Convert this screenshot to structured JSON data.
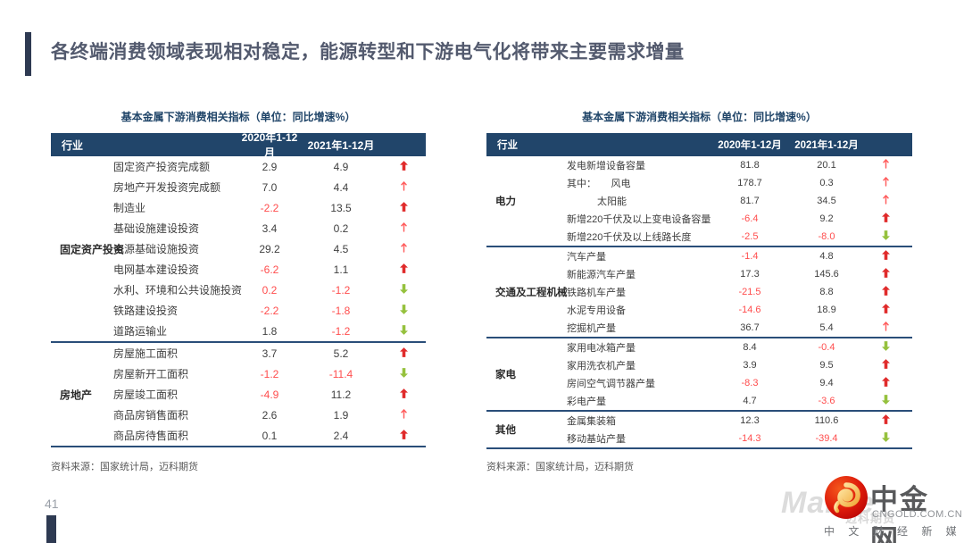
{
  "slide": {
    "title": "各终端消费领域表现相对稳定，能源转型和下游电气化将带来主要需求增量",
    "page_number": "41",
    "source_left": "资料来源：国家统计局，迈科期货",
    "source_right": "资料来源：国家统计局，迈科期货"
  },
  "colors": {
    "header_navy": "#21456A",
    "separator_navy": "#2A4E79",
    "value_red": "#FF4D4D",
    "value_dark": "#404040",
    "arrow_up_bold": "#E02B2B",
    "arrow_up_thin": "#FF5C5C",
    "arrow_down_green": "#95C13D"
  },
  "logo": {
    "name": "中金网",
    "domain": "CNGOLD.COM.CN",
    "tagline": "中 文 财 经 新 媒 体",
    "watermark": "MaiKe",
    "watermark2": "迈科期货",
    "mark_icon": "red-gold-cloud-circle"
  },
  "tables": [
    {
      "title": "基本金属下游消费相关指标（单位：同比增速%）",
      "headers": {
        "industry": "行业",
        "p2020": "2020年1-12月",
        "p2021": "2021年1-12月"
      },
      "groups": [
        {
          "name": "固定资产投资",
          "rows": [
            {
              "label": "固定资产投资完成额",
              "indent": 0,
              "v2020": "2.9",
              "c2020": "k",
              "v2021": "4.9",
              "c2021": "k",
              "arrow": "up-bold"
            },
            {
              "label": "房地产开发投资完成额",
              "indent": 0,
              "v2020": "7.0",
              "c2020": "k",
              "v2021": "4.4",
              "c2021": "k",
              "arrow": "up-thin"
            },
            {
              "label": "制造业",
              "indent": 0,
              "v2020": "-2.2",
              "c2020": "r",
              "v2021": "13.5",
              "c2021": "k",
              "arrow": "up-bold"
            },
            {
              "label": "基础设施建设投资",
              "indent": 0,
              "v2020": "3.4",
              "c2020": "k",
              "v2021": "0.2",
              "c2021": "k",
              "arrow": "up-thin"
            },
            {
              "label": "电源基础设施投资",
              "indent": 0,
              "v2020": "29.2",
              "c2020": "k",
              "v2021": "4.5",
              "c2021": "k",
              "arrow": "up-thin"
            },
            {
              "label": "电网基本建设投资",
              "indent": 0,
              "v2020": "-6.2",
              "c2020": "r",
              "v2021": "1.1",
              "c2021": "k",
              "arrow": "up-bold"
            },
            {
              "label": "水利、环境和公共设施投资",
              "indent": 0,
              "v2020": "0.2",
              "c2020": "r",
              "v2021": "-1.2",
              "c2021": "r",
              "arrow": "down-bold"
            },
            {
              "label": "铁路建设投资",
              "indent": 0,
              "v2020": "-2.2",
              "c2020": "r",
              "v2021": "-1.8",
              "c2021": "r",
              "arrow": "down-bold"
            },
            {
              "label": "道路运输业",
              "indent": 0,
              "v2020": "1.8",
              "c2020": "k",
              "v2021": "-1.2",
              "c2021": "r",
              "arrow": "down-bold"
            }
          ]
        },
        {
          "name": "房地产",
          "rows": [
            {
              "label": "房屋施工面积",
              "indent": 0,
              "v2020": "3.7",
              "c2020": "k",
              "v2021": "5.2",
              "c2021": "k",
              "arrow": "up-bold"
            },
            {
              "label": "房屋新开工面积",
              "indent": 0,
              "v2020": "-1.2",
              "c2020": "r",
              "v2021": "-11.4",
              "c2021": "r",
              "arrow": "down-bold"
            },
            {
              "label": "房屋竣工面积",
              "indent": 0,
              "v2020": "-4.9",
              "c2020": "r",
              "v2021": "11.2",
              "c2021": "k",
              "arrow": "up-bold"
            },
            {
              "label": "商品房销售面积",
              "indent": 0,
              "v2020": "2.6",
              "c2020": "k",
              "v2021": "1.9",
              "c2021": "k",
              "arrow": "up-thin"
            },
            {
              "label": "商品房待售面积",
              "indent": 0,
              "v2020": "0.1",
              "c2020": "k",
              "v2021": "2.4",
              "c2021": "k",
              "arrow": "up-bold"
            }
          ]
        }
      ]
    },
    {
      "title": "基本金属下游消费相关指标（单位：同比增速%）",
      "headers": {
        "industry": "行业",
        "p2020": "2020年1-12月",
        "p2021": "2021年1-12月"
      },
      "groups": [
        {
          "name": "电力",
          "rows": [
            {
              "label": "发电新增设备容量",
              "indent": 0,
              "v2020": "81.8",
              "c2020": "k",
              "v2021": "20.1",
              "c2021": "k",
              "arrow": "up-thin"
            },
            {
              "label": "其中：　　风电",
              "indent": 0,
              "v2020": "178.7",
              "c2020": "k",
              "v2021": "0.3",
              "c2021": "k",
              "arrow": "up-thin"
            },
            {
              "label": "太阳能",
              "indent": 2,
              "v2020": "81.7",
              "c2020": "k",
              "v2021": "34.5",
              "c2021": "k",
              "arrow": "up-thin"
            },
            {
              "label": "新增220千伏及以上变电设备容量",
              "indent": 0,
              "v2020": "-6.4",
              "c2020": "r",
              "v2021": "9.2",
              "c2021": "k",
              "arrow": "up-bold"
            },
            {
              "label": "新增220千伏及以上线路长度",
              "indent": 0,
              "v2020": "-2.5",
              "c2020": "r",
              "v2021": "-8.0",
              "c2021": "r",
              "arrow": "down-bold"
            }
          ]
        },
        {
          "name": "交通及工程机械",
          "rows": [
            {
              "label": "汽车产量",
              "indent": 0,
              "v2020": "-1.4",
              "c2020": "r",
              "v2021": "4.8",
              "c2021": "k",
              "arrow": "up-bold"
            },
            {
              "label": "新能源汽车产量",
              "indent": 0,
              "v2020": "17.3",
              "c2020": "k",
              "v2021": "145.6",
              "c2021": "k",
              "arrow": "up-bold"
            },
            {
              "label": "铁路机车产量",
              "indent": 0,
              "v2020": "-21.5",
              "c2020": "r",
              "v2021": "8.8",
              "c2021": "k",
              "arrow": "up-bold"
            },
            {
              "label": "水泥专用设备",
              "indent": 0,
              "v2020": "-14.6",
              "c2020": "r",
              "v2021": "18.9",
              "c2021": "k",
              "arrow": "up-bold"
            },
            {
              "label": "挖掘机产量",
              "indent": 0,
              "v2020": "36.7",
              "c2020": "k",
              "v2021": "5.4",
              "c2021": "k",
              "arrow": "up-thin"
            }
          ]
        },
        {
          "name": "家电",
          "rows": [
            {
              "label": "家用电冰箱产量",
              "indent": 0,
              "v2020": "8.4",
              "c2020": "k",
              "v2021": "-0.4",
              "c2021": "r",
              "arrow": "down-bold"
            },
            {
              "label": "家用洗衣机产量",
              "indent": 0,
              "v2020": "3.9",
              "c2020": "k",
              "v2021": "9.5",
              "c2021": "k",
              "arrow": "up-bold"
            },
            {
              "label": "房间空气调节器产量",
              "indent": 0,
              "v2020": "-8.3",
              "c2020": "r",
              "v2021": "9.4",
              "c2021": "k",
              "arrow": "up-bold"
            },
            {
              "label": "彩电产量",
              "indent": 0,
              "v2020": "4.7",
              "c2020": "k",
              "v2021": "-3.6",
              "c2021": "r",
              "arrow": "down-bold"
            }
          ]
        },
        {
          "name": "其他",
          "rows": [
            {
              "label": "金属集装箱",
              "indent": 0,
              "v2020": "12.3",
              "c2020": "k",
              "v2021": "110.6",
              "c2021": "k",
              "arrow": "up-bold"
            },
            {
              "label": "移动基站产量",
              "indent": 0,
              "v2020": "-14.3",
              "c2020": "r",
              "v2021": "-39.4",
              "c2021": "r",
              "arrow": "down-bold"
            }
          ]
        }
      ]
    }
  ]
}
